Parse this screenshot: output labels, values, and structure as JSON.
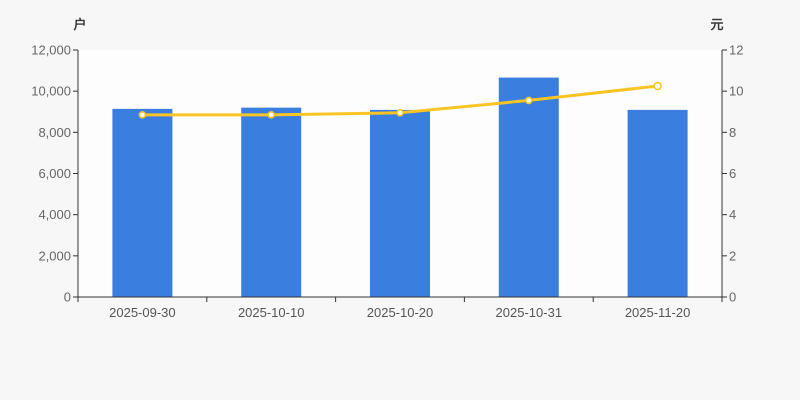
{
  "chart_data": {
    "type": "bar+line",
    "categories": [
      "2025-09-30",
      "2025-10-10",
      "2025-10-20",
      "2025-10-31",
      "2025-11-20"
    ],
    "series": [
      {
        "id": "bar-series",
        "type": "bar",
        "axis": "left",
        "color": "#3a7ee0",
        "values": [
          9140,
          9200,
          9090,
          10660,
          9090
        ]
      },
      {
        "id": "line-series",
        "type": "line",
        "axis": "right",
        "color": "#fac524",
        "marker_fill": "#ffffff",
        "values": [
          8.85,
          8.85,
          8.95,
          9.55,
          10.25
        ]
      }
    ],
    "left_axis": {
      "unit_label": "户",
      "min": 0,
      "max": 12000,
      "step": 2000,
      "tick_labels": [
        "0",
        "2,000",
        "4,000",
        "6,000",
        "8,000",
        "10,000",
        "12,000"
      ]
    },
    "right_axis": {
      "unit_label": "元",
      "min": 0,
      "max": 12,
      "step": 2,
      "tick_labels": [
        "0",
        "2",
        "4",
        "6",
        "8",
        "10",
        "12"
      ]
    },
    "x_axis": {
      "tick_labels": [
        "2025-09-30",
        "2025-10-10",
        "2025-10-20",
        "2025-10-31",
        "2025-11-20"
      ]
    },
    "grid": false,
    "legend_position": "none",
    "colors": {
      "background": "#f7f7f7",
      "plot_background": "#fdfdfd",
      "axis_line": "#333333",
      "tick_text": "#666666",
      "date_text": "#555555",
      "unit_text": "#3a3a3a"
    }
  }
}
